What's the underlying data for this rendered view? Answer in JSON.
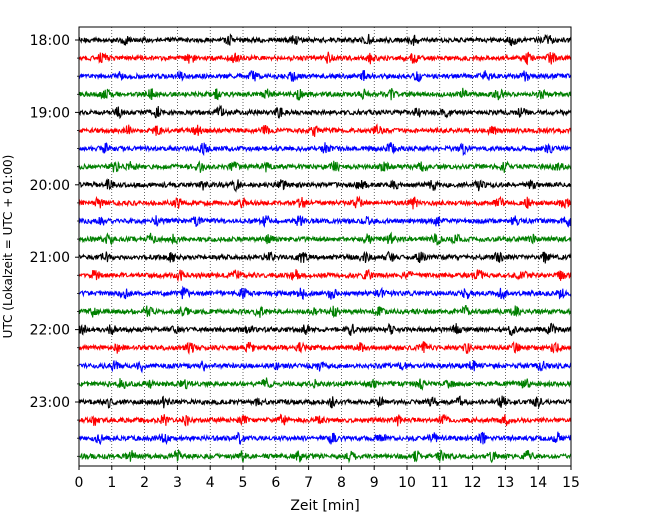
{
  "chart_data": {
    "type": "line",
    "title": "",
    "xlabel": "Zeit  [min]",
    "ylabel": "UTC (Lokalzeit = UTC + 01:00)",
    "xlim": [
      0,
      15
    ],
    "xticks": [
      "0",
      "1",
      "2",
      "3",
      "4",
      "5",
      "6",
      "7",
      "8",
      "9",
      "10",
      "11",
      "12",
      "13",
      "14",
      "15"
    ],
    "yticks": [
      "18:00",
      "19:00",
      "20:00",
      "21:00",
      "22:00",
      "23:00"
    ],
    "trace_interval_minutes": 15,
    "grid": {
      "x": true,
      "y": false,
      "style": "dotted"
    },
    "colors": [
      "#000000",
      "#ff0000",
      "#0000ff",
      "#008000"
    ],
    "series": [
      {
        "start": "18:00",
        "color": "#000000",
        "events": [
          1.4,
          4.6,
          6.6,
          8.8,
          10.2,
          13.2,
          14.3
        ]
      },
      {
        "start": "18:15",
        "color": "#ff0000",
        "events": [
          0.7,
          3.4,
          4.7,
          7.6,
          8.9,
          10.2,
          13.7,
          14.4
        ]
      },
      {
        "start": "18:30",
        "color": "#0000ff",
        "events": [
          1.2,
          3.1,
          5.3,
          6.5,
          8.7,
          10.3,
          12.4,
          13.6
        ]
      },
      {
        "start": "18:45",
        "color": "#008000",
        "events": [
          0.8,
          2.2,
          4.2,
          5.7,
          6.7,
          8.7,
          9.5,
          11.7,
          12.8,
          14.1
        ]
      },
      {
        "start": "19:00",
        "color": "#000000",
        "events": [
          1.2,
          2.4,
          4.3,
          6.1,
          10.3,
          11.2,
          13.5
        ]
      },
      {
        "start": "19:15",
        "color": "#ff0000",
        "events": [
          1.5,
          2.4,
          3.6,
          5.7,
          7.2,
          9.1,
          12.6
        ]
      },
      {
        "start": "19:30",
        "color": "#0000ff",
        "events": [
          0.8,
          3.8,
          7.5,
          9.5,
          11.7,
          14.3
        ]
      },
      {
        "start": "19:45",
        "color": "#008000",
        "events": [
          1.1,
          1.6,
          3.7,
          4.7,
          5.7,
          7.8,
          9.3,
          10.5,
          13.0,
          14.6
        ]
      },
      {
        "start": "20:00",
        "color": "#000000",
        "events": [
          0.9,
          3.8,
          4.8,
          6.2,
          8.6,
          9.6,
          10.8,
          12.2,
          13.8
        ]
      },
      {
        "start": "20:15",
        "color": "#ff0000",
        "events": [
          0.6,
          3.0,
          5.0,
          6.8,
          8.5,
          10.2,
          12.8,
          13.7,
          14.8
        ]
      },
      {
        "start": "20:30",
        "color": "#0000ff",
        "events": [
          0.7,
          2.4,
          3.6,
          5.7,
          6.7,
          8.8,
          10.9,
          13.3,
          14.9
        ]
      },
      {
        "start": "20:45",
        "color": "#008000",
        "events": [
          0.9,
          2.2,
          2.9,
          5.8,
          8.8,
          9.5,
          10.9,
          11.5,
          13.8
        ]
      },
      {
        "start": "21:00",
        "color": "#000000",
        "events": [
          0.8,
          2.8,
          5.8,
          6.8,
          8.7,
          9.5,
          10.4,
          12.8,
          14.2
        ]
      },
      {
        "start": "21:15",
        "color": "#ff0000",
        "events": [
          0.5,
          3.1,
          4.8,
          6.6,
          8.8,
          10.0,
          12.2,
          13.5,
          14.7
        ]
      },
      {
        "start": "21:30",
        "color": "#0000ff",
        "events": [
          1.4,
          3.2,
          5.0,
          6.8,
          7.7,
          9.2,
          11.8,
          12.9,
          14.7
        ]
      },
      {
        "start": "21:45",
        "color": "#008000",
        "events": [
          0.4,
          2.1,
          3.2,
          5.5,
          7.2,
          7.8,
          9.2,
          11.8,
          13.3
        ]
      },
      {
        "start": "22:00",
        "color": "#000000",
        "events": [
          0.1,
          1.0,
          2.9,
          5.2,
          6.9,
          8.3,
          9.5,
          11.5,
          13.2,
          14.4
        ]
      },
      {
        "start": "22:15",
        "color": "#ff0000",
        "events": [
          1.2,
          3.4,
          5.2,
          6.8,
          8.6,
          10.5,
          11.8,
          13.3,
          14.5
        ]
      },
      {
        "start": "22:30",
        "color": "#0000ff",
        "events": [
          1.1,
          1.9,
          3.8,
          6.0,
          7.3,
          9.9,
          12.0,
          14.1
        ]
      },
      {
        "start": "22:45",
        "color": "#008000",
        "events": [
          1.3,
          2.1,
          3.2,
          5.7,
          7.2,
          9.0,
          10.4,
          11.3,
          13.6
        ]
      },
      {
        "start": "23:00",
        "color": "#000000",
        "events": [
          0.9,
          2.6,
          5.5,
          7.7,
          9.2,
          10.8,
          11.6,
          12.9,
          14.0
        ]
      },
      {
        "start": "23:15",
        "color": "#ff0000",
        "events": [
          0.5,
          2.6,
          3.3,
          5.0,
          6.2,
          7.3,
          9.7,
          11.1,
          13.0
        ]
      },
      {
        "start": "23:30",
        "color": "#0000ff",
        "events": [
          0.6,
          2.6,
          4.9,
          7.7,
          9.2,
          10.8,
          12.3,
          14.6
        ]
      },
      {
        "start": "23:45",
        "color": "#008000",
        "events": [
          1.6,
          3.0,
          5.0,
          6.7,
          8.3,
          10.3,
          11.0,
          12.6,
          13.7
        ]
      }
    ]
  }
}
